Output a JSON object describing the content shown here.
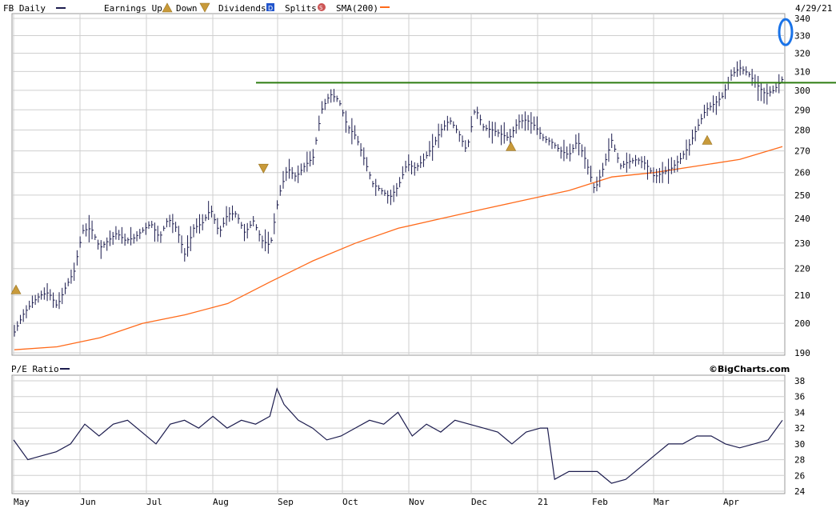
{
  "header": {
    "symbol_label": "FB Daily",
    "earnings_label": "Earnings Up",
    "down_label": "Down",
    "dividends_label": "Dividends",
    "splits_label": "Splits",
    "sma_label": "SMA(200)",
    "date_label": "4/29/21"
  },
  "colors": {
    "price": "#1c1c4e",
    "sma": "#ff6a1a",
    "resistance": "#2e7d12",
    "annotation": "#1a73e8",
    "earnings_fill": "#c89a3a",
    "dividends_fill": "#2255cc",
    "splits_fill": "#cc5555",
    "grid": "#cfcfcf"
  },
  "lower_panel": {
    "title": "P/E Ratio",
    "credit": "©BigCharts.com"
  },
  "chart_data": [
    {
      "type": "ohlc",
      "series": [
        {
          "name": "FB Daily",
          "sampled_closes": [
            [
              0,
              197
            ],
            [
              1,
              203
            ],
            [
              2,
              207
            ],
            [
              3,
              210
            ],
            [
              4,
              211
            ],
            [
              5,
              206
            ],
            [
              6,
              213
            ],
            [
              7,
              219
            ],
            [
              8,
              235
            ],
            [
              9,
              236
            ],
            [
              10,
              228
            ],
            [
              11,
              231
            ],
            [
              12,
              234
            ],
            [
              13,
              231
            ],
            [
              14,
              232
            ],
            [
              15,
              235
            ],
            [
              16,
              238
            ],
            [
              17,
              232
            ],
            [
              18,
              240
            ],
            [
              19,
              236
            ],
            [
              20,
              225
            ],
            [
              21,
              236
            ],
            [
              22,
              238
            ],
            [
              23,
              244
            ],
            [
              24,
              234
            ],
            [
              25,
              242
            ],
            [
              26,
              242
            ],
            [
              27,
              234
            ],
            [
              28,
              239
            ],
            [
              29,
              231
            ],
            [
              30,
              229
            ],
            [
              31,
              250
            ],
            [
              32,
              262
            ],
            [
              33,
              258
            ],
            [
              34,
              263
            ],
            [
              35,
              267
            ],
            [
              36,
              290
            ],
            [
              37,
              298
            ],
            [
              38,
              295
            ],
            [
              39,
              282
            ],
            [
              40,
              277
            ],
            [
              41,
              266
            ],
            [
              42,
              255
            ],
            [
              43,
              252
            ],
            [
              44,
              249
            ],
            [
              45,
              254
            ],
            [
              46,
              264
            ],
            [
              47,
              262
            ],
            [
              48,
              266
            ],
            [
              49,
              272
            ],
            [
              50,
              280
            ],
            [
              51,
              285
            ],
            [
              52,
              279
            ],
            [
              53,
              270
            ],
            [
              54,
              291
            ],
            [
              55,
              281
            ],
            [
              56,
              280
            ],
            [
              57,
              278
            ],
            [
              58,
              276
            ],
            [
              59,
              284
            ],
            [
              60,
              285
            ],
            [
              61,
              282
            ],
            [
              62,
              276
            ],
            [
              63,
              274
            ],
            [
              64,
              270
            ],
            [
              65,
              268
            ],
            [
              66,
              275
            ],
            [
              67,
              265
            ],
            [
              68,
              252
            ],
            [
              69,
              262
            ],
            [
              70,
              275
            ],
            [
              71,
              263
            ],
            [
              72,
              265
            ],
            [
              73,
              266
            ],
            [
              74,
              264
            ],
            [
              75,
              258
            ],
            [
              76,
              260
            ],
            [
              77,
              262
            ],
            [
              78,
              266
            ],
            [
              79,
              272
            ],
            [
              80,
              281
            ],
            [
              81,
              290
            ],
            [
              82,
              293
            ],
            [
              83,
              297
            ],
            [
              84,
              308
            ],
            [
              85,
              312
            ],
            [
              86,
              309
            ],
            [
              87,
              303
            ],
            [
              88,
              298
            ],
            [
              89,
              300
            ],
            [
              90,
              306
            ]
          ]
        },
        {
          "name": "SMA(200)",
          "values": [
            [
              0,
              191
            ],
            [
              5,
              192
            ],
            [
              10,
              195
            ],
            [
              15,
              200
            ],
            [
              20,
              203
            ],
            [
              25,
              207
            ],
            [
              30,
              215
            ],
            [
              35,
              223
            ],
            [
              40,
              230
            ],
            [
              45,
              236
            ],
            [
              50,
              240
            ],
            [
              55,
              244
            ],
            [
              60,
              248
            ],
            [
              65,
              252
            ],
            [
              70,
              258
            ],
            [
              75,
              260
            ],
            [
              80,
              263
            ],
            [
              85,
              266
            ],
            [
              90,
              272
            ]
          ]
        }
      ],
      "x_tick_labels": [
        "May",
        "Jun",
        "Jul",
        "Aug",
        "Sep",
        "Oct",
        "Nov",
        "Dec",
        "21",
        "Feb",
        "Mar",
        "Apr"
      ],
      "y_tick_labels": [
        190,
        200,
        210,
        220,
        230,
        240,
        250,
        260,
        270,
        280,
        290,
        300,
        310,
        320,
        330,
        340
      ],
      "ylim": [
        190,
        340
      ],
      "y_scale": "log",
      "resistance_level": 304,
      "circled_value": 332,
      "earnings_markers": [
        {
          "x": 0,
          "price": 212,
          "kind": "up"
        },
        {
          "x": 29,
          "price": 262,
          "kind": "down"
        },
        {
          "x": 58,
          "price": 272,
          "kind": "up"
        },
        {
          "x": 81,
          "price": 275,
          "kind": "up"
        }
      ],
      "grid": true
    },
    {
      "type": "line",
      "series": [
        {
          "name": "P/E Ratio",
          "values": [
            [
              0,
              30.5
            ],
            [
              2,
              28
            ],
            [
              4,
              28.5
            ],
            [
              6,
              29
            ],
            [
              8,
              30
            ],
            [
              10,
              32.5
            ],
            [
              12,
              31
            ],
            [
              14,
              32.5
            ],
            [
              16,
              33
            ],
            [
              18,
              31.5
            ],
            [
              20,
              30
            ],
            [
              22,
              32.5
            ],
            [
              24,
              33
            ],
            [
              26,
              32
            ],
            [
              28,
              33.5
            ],
            [
              30,
              32
            ],
            [
              32,
              33
            ],
            [
              34,
              32.5
            ],
            [
              36,
              33.5
            ],
            [
              37,
              37
            ],
            [
              38,
              35
            ],
            [
              40,
              33
            ],
            [
              42,
              32
            ],
            [
              44,
              30.5
            ],
            [
              46,
              31
            ],
            [
              48,
              32
            ],
            [
              50,
              33
            ],
            [
              52,
              32.5
            ],
            [
              54,
              34
            ],
            [
              56,
              31
            ],
            [
              58,
              32.5
            ],
            [
              60,
              31.5
            ],
            [
              62,
              33
            ],
            [
              64,
              32.5
            ],
            [
              66,
              32
            ],
            [
              68,
              31.5
            ],
            [
              70,
              30
            ],
            [
              72,
              31.5
            ],
            [
              74,
              32
            ],
            [
              75,
              32
            ],
            [
              76,
              25.5
            ],
            [
              78,
              26.5
            ],
            [
              80,
              26.5
            ],
            [
              82,
              26.5
            ],
            [
              84,
              25
            ],
            [
              86,
              25.5
            ],
            [
              88,
              27
            ],
            [
              90,
              28.5
            ],
            [
              92,
              30
            ],
            [
              94,
              30
            ],
            [
              96,
              31
            ],
            [
              98,
              31
            ],
            [
              100,
              30
            ],
            [
              102,
              29.5
            ],
            [
              104,
              30
            ],
            [
              106,
              30.5
            ],
            [
              108,
              33
            ]
          ]
        }
      ],
      "x_tick_labels": [
        "May",
        "Jun",
        "Jul",
        "Aug",
        "Sep",
        "Oct",
        "Nov",
        "Dec",
        "21",
        "Feb",
        "Mar",
        "Apr"
      ],
      "y_tick_labels": [
        24,
        26,
        28,
        30,
        32,
        34,
        36,
        38
      ],
      "ylim": [
        24,
        38
      ],
      "grid": true
    }
  ]
}
